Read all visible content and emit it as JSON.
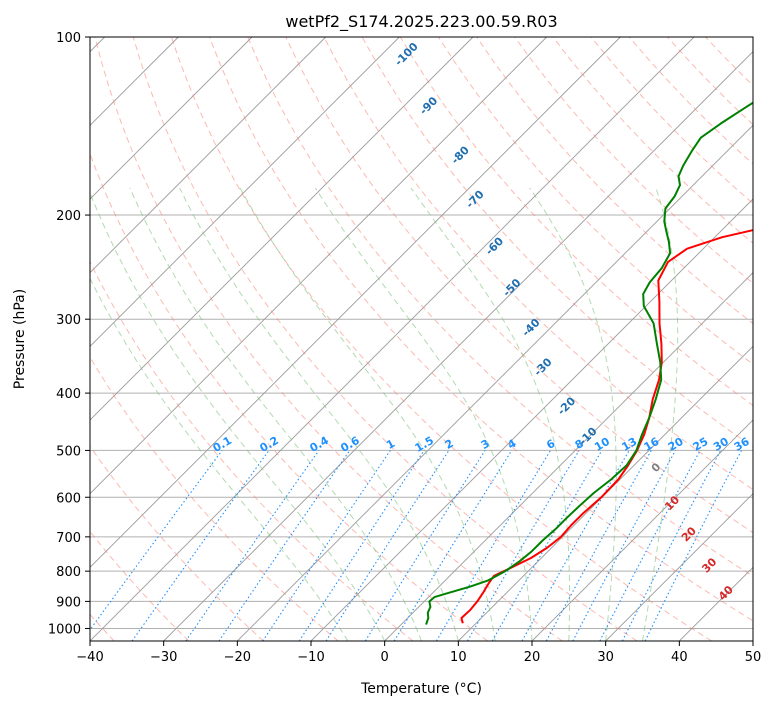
{
  "chart_data": {
    "type": "line",
    "title": "wetPf2_S174.2025.223.00.59.R03",
    "xlabel": "Temperature (°C)",
    "ylabel": "Pressure (hPa)",
    "xlim": [
      -40,
      50
    ],
    "ylim": [
      1050,
      100
    ],
    "yscale": "log",
    "grid": true,
    "x_ticks": [
      -40,
      -30,
      -20,
      -10,
      0,
      10,
      20,
      30,
      40,
      50
    ],
    "x_tick_labels": [
      "−40",
      "−30",
      "−20",
      "−10",
      "0",
      "10",
      "20",
      "30",
      "40",
      "50"
    ],
    "y_ticks": [
      1000,
      900,
      800,
      700,
      600,
      500,
      400,
      300,
      200,
      100
    ],
    "y_tick_labels": [
      "1000",
      "900",
      "800",
      "700",
      "600",
      "500",
      "400",
      "300",
      "200",
      "100"
    ],
    "skew_lines_temps": [
      -140,
      -130,
      -120,
      -110,
      -100,
      -90,
      -80,
      -70,
      -60,
      -50,
      -40,
      -30,
      -20,
      -10,
      0,
      10,
      20,
      30,
      40,
      50
    ],
    "dry_adiabat_theta_c": [
      -60,
      -50,
      -40,
      -30,
      -20,
      -10,
      0,
      10,
      20,
      30,
      40,
      50,
      60,
      70,
      80,
      90,
      100,
      110,
      120,
      130,
      140,
      150,
      160,
      170,
      180
    ],
    "moist_adiabat_start_c": [
      -5,
      0,
      5,
      10,
      15,
      20,
      25,
      30,
      35
    ],
    "mixing_ratios": [
      0.1,
      0.2,
      0.4,
      0.6,
      1,
      1.5,
      2,
      3,
      4,
      6,
      8,
      10,
      13,
      16,
      20,
      25,
      30,
      36
    ],
    "mixing_ratio_labels": [
      "0.1",
      "0.2",
      "0.4",
      "0.6",
      "1",
      "1.5",
      "2",
      "3",
      "4",
      "6",
      "8",
      "10",
      "13",
      "16",
      "20",
      "25",
      "30",
      "36"
    ],
    "moist_labels": [
      {
        "text": "-100",
        "p": 108,
        "t": -76
      },
      {
        "text": "-90",
        "p": 132,
        "t": -66
      },
      {
        "text": "-80",
        "p": 160,
        "t": -55
      },
      {
        "text": "-70",
        "p": 190,
        "t": -47
      },
      {
        "text": "-60",
        "p": 228,
        "t": -38
      },
      {
        "text": "-50",
        "p": 268,
        "t": -30
      },
      {
        "text": "-40",
        "p": 313,
        "t": -22
      },
      {
        "text": "-30",
        "p": 365,
        "t": -15
      },
      {
        "text": "-20",
        "p": 425,
        "t": -6.5
      },
      {
        "text": "-10",
        "p": 478,
        "t": 0.5
      }
    ],
    "dry_labels": [
      {
        "text": "0",
        "p": 540,
        "t": 14
      },
      {
        "text": "10",
        "p": 620,
        "t": 21
      },
      {
        "text": "20",
        "p": 700,
        "t": 27.5
      },
      {
        "text": "30",
        "p": 790,
        "t": 34.5
      },
      {
        "text": "40",
        "p": 880,
        "t": 40.5
      }
    ],
    "colors": {
      "temperature": "#ff0000",
      "dewpoint": "#008000",
      "dry_adiabat": "#fa8072",
      "moist_adiabat": "#7fbf7f",
      "mixing_ratio": "#1e90ff",
      "isotherm": "#9a9a9a",
      "grid": "#b0b0b0",
      "moist_label": "#1f6fb0",
      "dry_label": "#d62728",
      "zero_label": "#808080"
    },
    "series": [
      {
        "name": "Temperature",
        "color": "#ff0000",
        "points": [
          [
            8.2,
            980
          ],
          [
            7.3,
            960
          ],
          [
            7.4,
            930
          ],
          [
            7.2,
            900
          ],
          [
            6.8,
            870
          ],
          [
            6.3,
            840
          ],
          [
            6.0,
            815
          ],
          [
            7.2,
            790
          ],
          [
            8.6,
            760
          ],
          [
            9.4,
            730
          ],
          [
            9.8,
            700
          ],
          [
            9.6,
            670
          ],
          [
            9.6,
            640
          ],
          [
            9.9,
            600
          ],
          [
            9.8,
            560
          ],
          [
            9.2,
            530
          ],
          [
            8.4,
            500
          ],
          [
            7.2,
            470
          ],
          [
            5.6,
            440
          ],
          [
            3.6,
            410
          ],
          [
            1.8,
            380
          ],
          [
            -0.2,
            355
          ],
          [
            -2.8,
            330
          ],
          [
            -5.8,
            305
          ],
          [
            -8.8,
            280
          ],
          [
            -11.8,
            258
          ],
          [
            -13.0,
            240
          ],
          [
            -12.2,
            228
          ],
          [
            -9.0,
            218
          ],
          [
            -3.5,
            208
          ],
          [
            1.0,
            200
          ],
          [
            5.0,
            192
          ],
          [
            8.5,
            184
          ],
          [
            10.5,
            178
          ],
          [
            12.4,
            168
          ],
          [
            13.6,
            158
          ],
          [
            15.0,
            148
          ],
          [
            18.0,
            138
          ],
          [
            22.8,
            126
          ],
          [
            25.6,
            116
          ],
          [
            28.6,
            107
          ],
          [
            31.0,
            100
          ]
        ]
      },
      {
        "name": "Dewpoint",
        "color": "#008000",
        "points": [
          [
            3.4,
            985
          ],
          [
            2.8,
            960
          ],
          [
            2.0,
            940
          ],
          [
            1.6,
            920
          ],
          [
            0.7,
            900
          ],
          [
            0.8,
            885
          ],
          [
            2.2,
            870
          ],
          [
            4.2,
            850
          ],
          [
            5.8,
            830
          ],
          [
            6.9,
            800
          ],
          [
            7.5,
            770
          ],
          [
            7.8,
            740
          ],
          [
            7.8,
            710
          ],
          [
            8.0,
            680
          ],
          [
            8.0,
            650
          ],
          [
            8.1,
            620
          ],
          [
            8.3,
            590
          ],
          [
            8.8,
            560
          ],
          [
            9.0,
            530
          ],
          [
            8.3,
            500
          ],
          [
            6.9,
            470
          ],
          [
            5.6,
            440
          ],
          [
            4.0,
            410
          ],
          [
            2.1,
            380
          ],
          [
            -0.4,
            355
          ],
          [
            -3.4,
            330
          ],
          [
            -6.6,
            305
          ],
          [
            -10.3,
            285
          ],
          [
            -12.0,
            272
          ],
          [
            -12.7,
            260
          ],
          [
            -13.0,
            246
          ],
          [
            -13.9,
            232
          ],
          [
            -15.6,
            222
          ],
          [
            -17.4,
            213
          ],
          [
            -19.0,
            205
          ],
          [
            -20.6,
            195
          ],
          [
            -21.0,
            186
          ],
          [
            -21.8,
            178
          ],
          [
            -23.2,
            172
          ],
          [
            -24.0,
            165
          ],
          [
            -24.8,
            156
          ],
          [
            -25.4,
            148
          ],
          [
            -24.6,
            140
          ],
          [
            -23.5,
            132
          ],
          [
            -22.3,
            124
          ],
          [
            -20.2,
            116
          ],
          [
            -18.6,
            109
          ],
          [
            -17.0,
            104
          ],
          [
            -15.8,
            100
          ]
        ]
      }
    ]
  }
}
